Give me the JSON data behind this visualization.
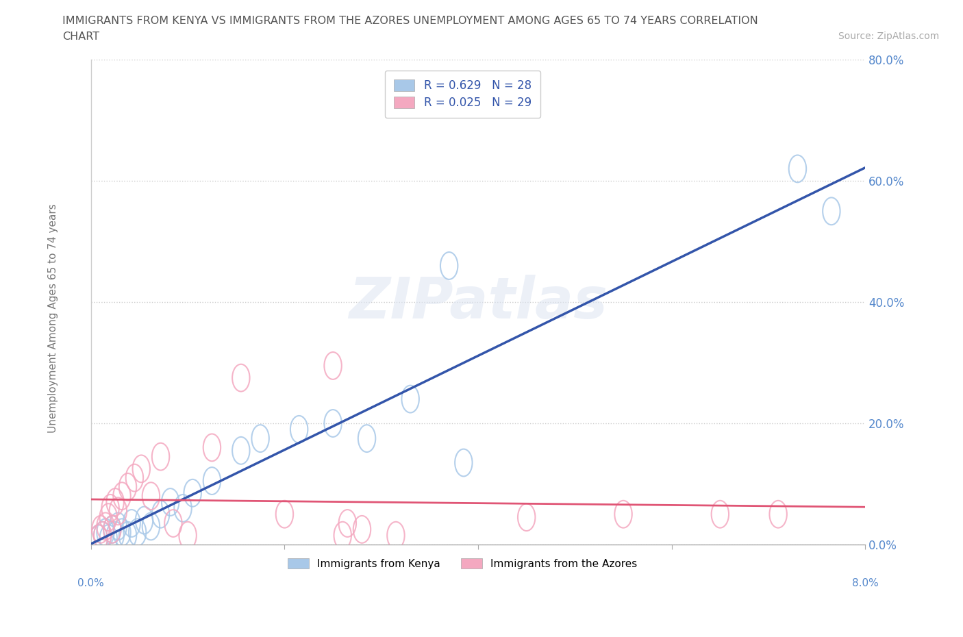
{
  "title_line1": "IMMIGRANTS FROM KENYA VS IMMIGRANTS FROM THE AZORES UNEMPLOYMENT AMONG AGES 65 TO 74 YEARS CORRELATION",
  "title_line2": "CHART",
  "source_text": "Source: ZipAtlas.com",
  "ylabel": "Unemployment Among Ages 65 to 74 years",
  "xlim": [
    0.0,
    8.0
  ],
  "ylim": [
    0.0,
    80.0
  ],
  "yticks": [
    0.0,
    20.0,
    40.0,
    60.0,
    80.0
  ],
  "kenya_R": 0.629,
  "kenya_N": 28,
  "azores_R": 0.025,
  "azores_N": 29,
  "kenya_color": "#a8c8e8",
  "azores_color": "#f4a8c0",
  "kenya_line_color": "#3355aa",
  "azores_line_color": "#e05575",
  "kenya_x": [
    0.08,
    0.12,
    0.15,
    0.18,
    0.22,
    0.25,
    0.28,
    0.32,
    0.38,
    0.42,
    0.48,
    0.55,
    0.62,
    0.72,
    0.82,
    0.95,
    1.05,
    1.25,
    1.55,
    1.75,
    2.15,
    2.5,
    2.85,
    3.3,
    3.7,
    3.85,
    7.3,
    7.65
  ],
  "kenya_y": [
    1.0,
    1.5,
    2.0,
    1.0,
    2.5,
    1.5,
    3.0,
    2.0,
    1.5,
    3.5,
    2.0,
    4.0,
    3.0,
    5.0,
    7.0,
    6.0,
    8.5,
    10.5,
    15.5,
    17.5,
    19.0,
    20.0,
    17.5,
    24.0,
    46.0,
    13.5,
    62.0,
    55.0
  ],
  "azores_x": [
    0.08,
    0.1,
    0.12,
    0.15,
    0.18,
    0.2,
    0.22,
    0.25,
    0.28,
    0.32,
    0.38,
    0.45,
    0.52,
    0.62,
    0.72,
    0.85,
    1.0,
    1.25,
    1.55,
    2.0,
    2.5,
    2.6,
    2.65,
    2.8,
    3.15,
    4.5,
    5.5,
    6.5,
    7.1
  ],
  "azores_y": [
    1.0,
    2.5,
    1.5,
    3.0,
    4.5,
    6.0,
    2.5,
    7.0,
    5.5,
    8.0,
    9.5,
    11.0,
    12.5,
    8.0,
    14.5,
    3.5,
    1.5,
    16.0,
    27.5,
    5.0,
    29.5,
    1.5,
    3.5,
    2.5,
    1.5,
    4.5,
    5.0,
    5.0,
    5.0
  ],
  "watermark_text": "ZIPatlas",
  "background_color": "#ffffff",
  "grid_color": "#cccccc",
  "yaxis_label_color": "#5588cc",
  "title_color": "#555555"
}
